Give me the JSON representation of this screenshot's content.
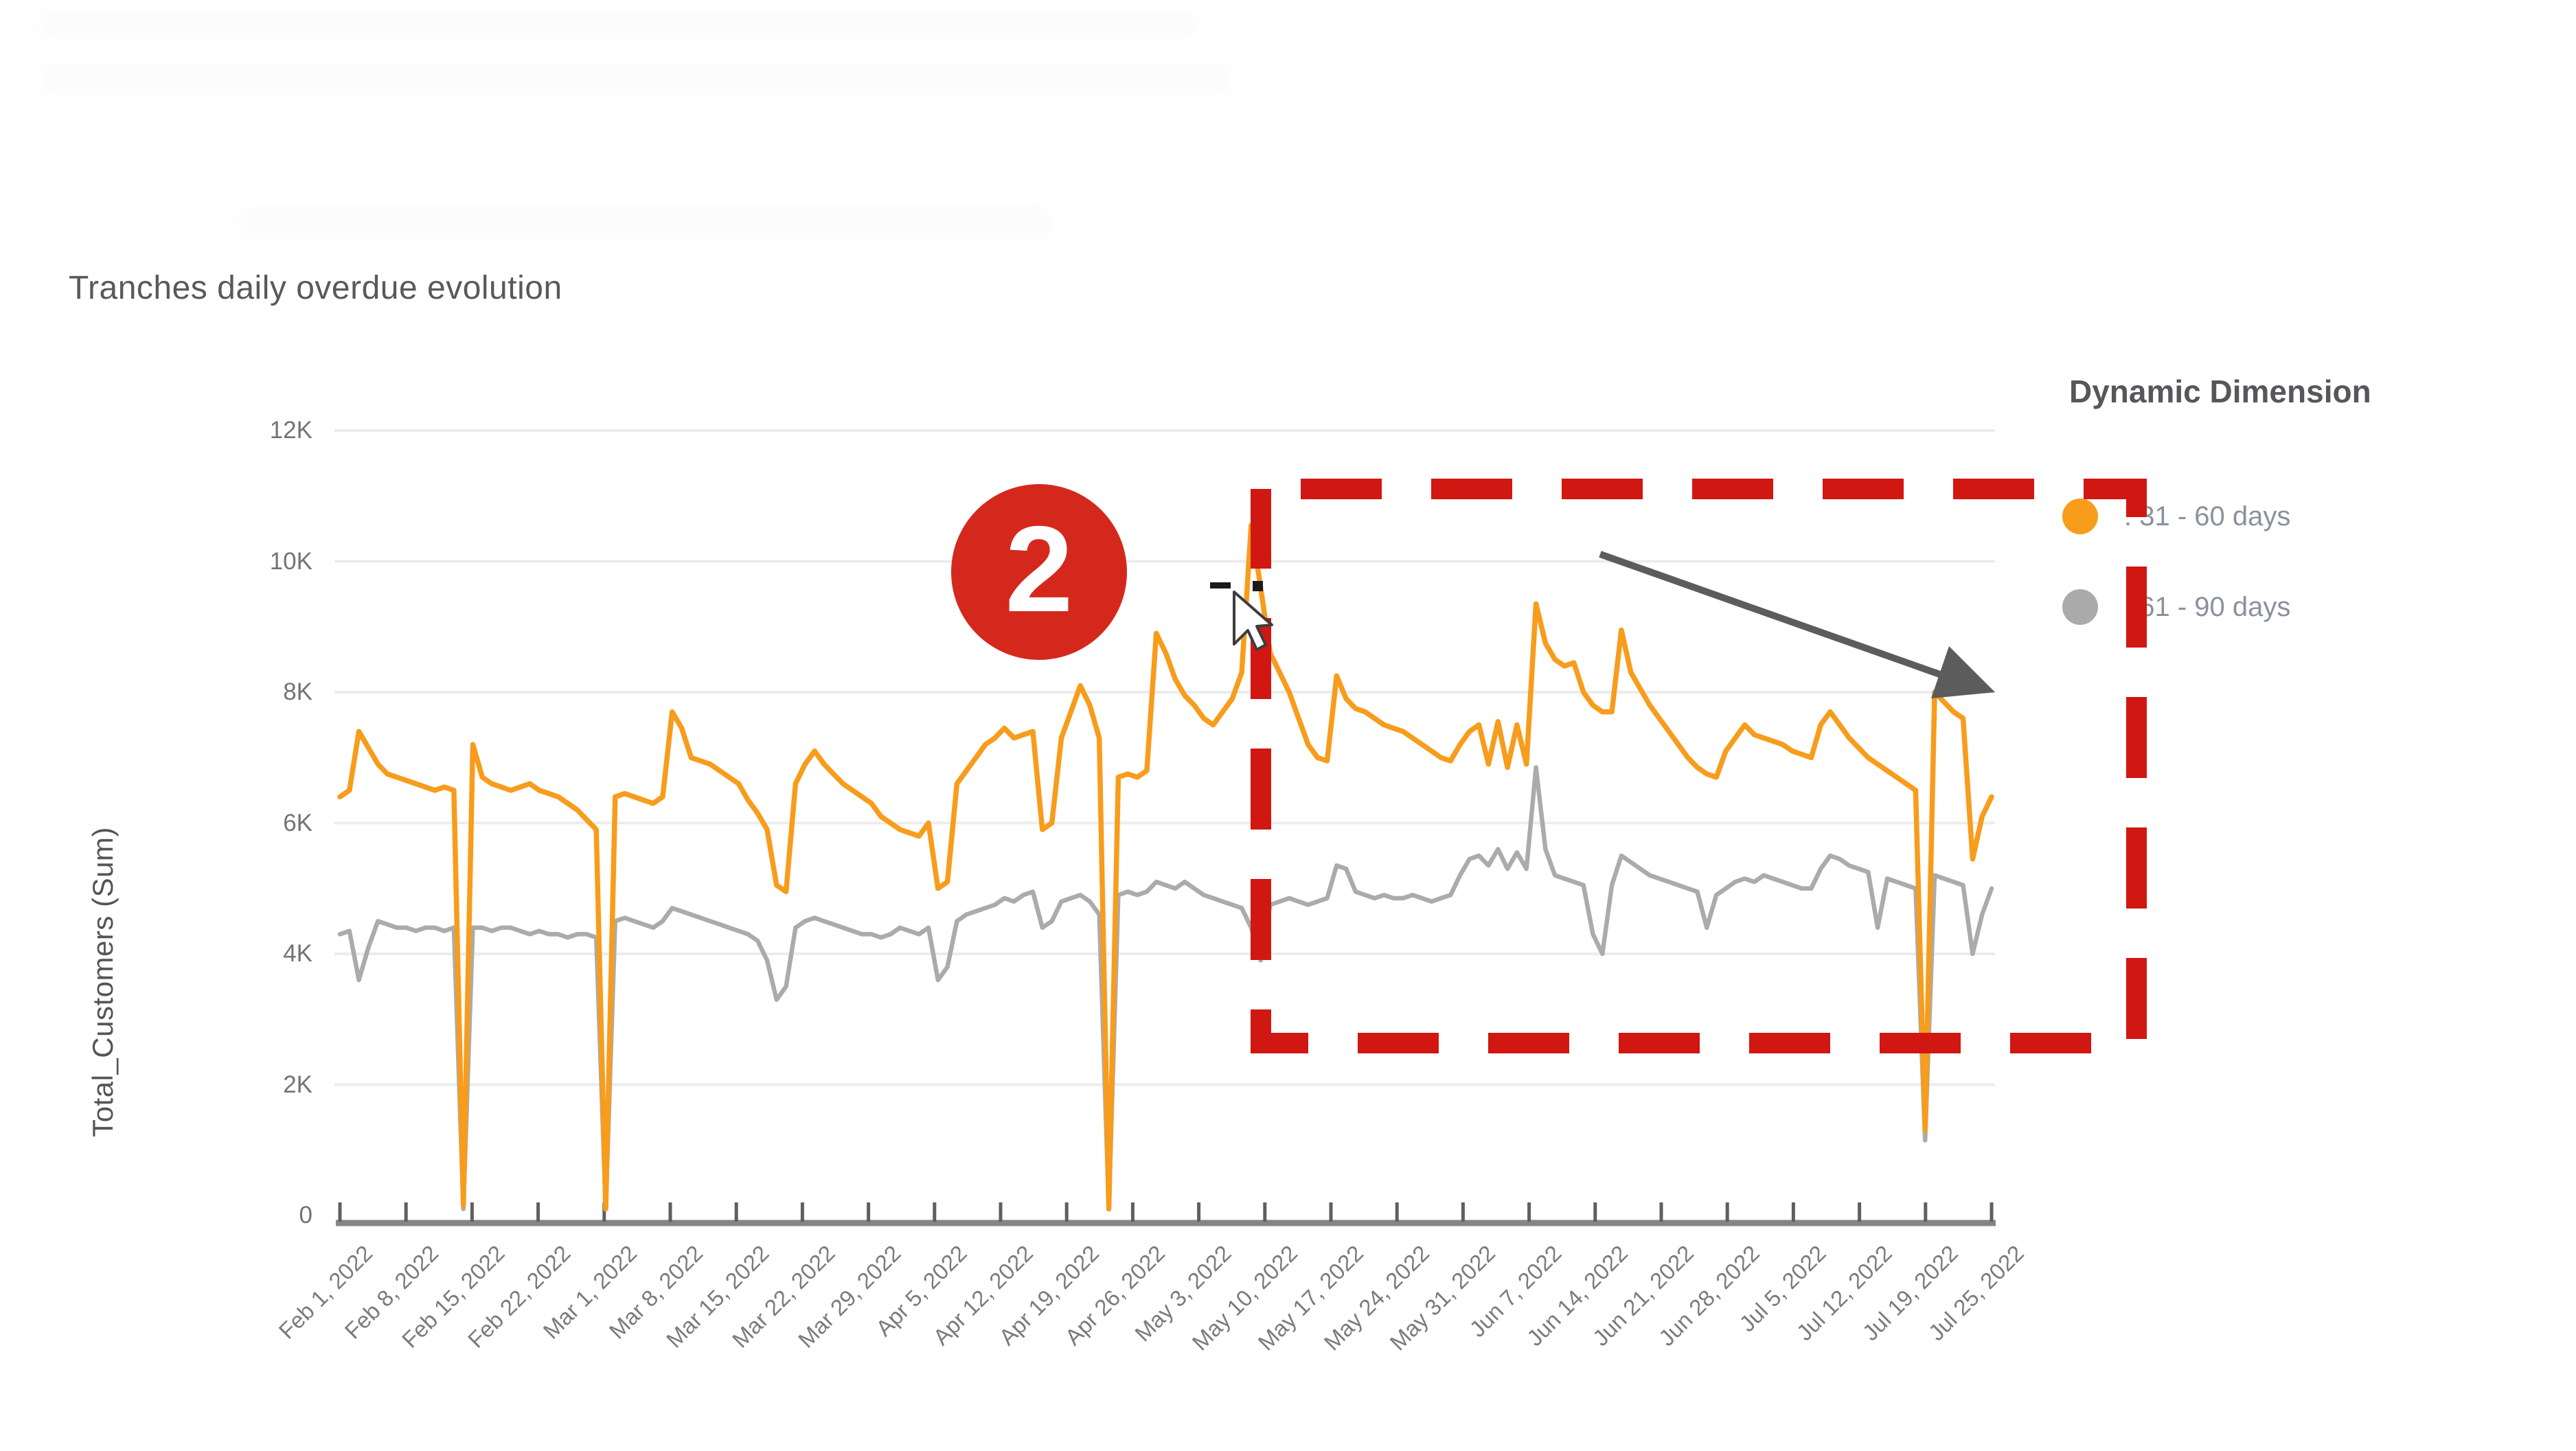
{
  "page": {
    "title": "Tranches daily overdue evolution"
  },
  "legend": {
    "title": "Dynamic Dimension",
    "items": [
      {
        "label": ". 31 - 60 days",
        "color": "#F89C1C"
      },
      {
        "label": ". 61 - 90 days",
        "color": "#ABABAB"
      }
    ]
  },
  "annotations": {
    "step_badge": "2",
    "badge_color": "#D5281D",
    "dash_color": "#D01712",
    "arrow_color": "#5C5C5C"
  },
  "chart_data": {
    "type": "line",
    "title": "Tranches daily overdue evolution",
    "xlabel": "",
    "ylabel": "Total_Customers (Sum)",
    "x_start": "Feb 1, 2022",
    "x_end": "Jul 25, 2022",
    "x_tick_labels": [
      "Feb 1, 2022",
      "Feb 8, 2022",
      "Feb 15, 2022",
      "Feb 22, 2022",
      "Mar 1, 2022",
      "Mar 8, 2022",
      "Mar 15, 2022",
      "Mar 22, 2022",
      "Mar 29, 2022",
      "Apr 5, 2022",
      "Apr 12, 2022",
      "Apr 19, 2022",
      "Apr 26, 2022",
      "May 3, 2022",
      "May 10, 2022",
      "May 17, 2022",
      "May 24, 2022",
      "May 31, 2022",
      "Jun 7, 2022",
      "Jun 14, 2022",
      "Jun 21, 2022",
      "Jun 28, 2022",
      "Jul 5, 2022",
      "Jul 12, 2022",
      "Jul 19, 2022",
      "Jul 25, 2022"
    ],
    "y_tick_labels": [
      "0",
      "2K",
      "4K",
      "6K",
      "8K",
      "10K",
      "12K"
    ],
    "ylim": [
      0,
      12000
    ],
    "grid": "horizontal",
    "legend_position": "right",
    "series": [
      {
        "name": ". 31 - 60 days",
        "color": "#F89C1C",
        "values_k": [
          6.4,
          6.5,
          7.4,
          7.15,
          6.9,
          6.75,
          6.7,
          6.65,
          6.6,
          6.55,
          6.5,
          6.55,
          6.5,
          0.15,
          7.2,
          6.7,
          6.6,
          6.55,
          6.5,
          6.55,
          6.6,
          6.5,
          6.45,
          6.4,
          6.3,
          6.2,
          6.05,
          5.9,
          0.1,
          6.4,
          6.45,
          6.4,
          6.35,
          6.3,
          6.4,
          7.7,
          7.45,
          7.0,
          6.95,
          6.9,
          6.8,
          6.7,
          6.6,
          6.35,
          6.15,
          5.9,
          5.05,
          4.95,
          6.6,
          6.9,
          7.1,
          6.9,
          6.75,
          6.6,
          6.5,
          6.4,
          6.3,
          6.1,
          6.0,
          5.9,
          5.85,
          5.8,
          6.0,
          5.0,
          5.1,
          6.6,
          6.8,
          7.0,
          7.2,
          7.3,
          7.45,
          7.3,
          7.35,
          7.4,
          5.9,
          6.0,
          7.3,
          7.7,
          8.1,
          7.8,
          7.3,
          0.1,
          6.7,
          6.75,
          6.7,
          6.8,
          8.9,
          8.6,
          8.2,
          7.95,
          7.8,
          7.6,
          7.5,
          7.7,
          7.9,
          8.3,
          10.55,
          9.6,
          8.6,
          8.3,
          8.0,
          7.6,
          7.2,
          7.0,
          6.95,
          8.25,
          7.9,
          7.75,
          7.7,
          7.6,
          7.5,
          7.45,
          7.4,
          7.3,
          7.2,
          7.1,
          7.0,
          6.95,
          7.2,
          7.4,
          7.5,
          6.9,
          7.55,
          6.85,
          7.5,
          6.9,
          9.35,
          8.75,
          8.5,
          8.4,
          8.45,
          8.0,
          7.8,
          7.7,
          7.7,
          8.95,
          8.3,
          8.05,
          7.8,
          7.6,
          7.4,
          7.2,
          7.0,
          6.85,
          6.75,
          6.7,
          7.1,
          7.3,
          7.5,
          7.35,
          7.3,
          7.25,
          7.2,
          7.1,
          7.05,
          7.0,
          7.5,
          7.7,
          7.5,
          7.3,
          7.15,
          7.0,
          6.9,
          6.8,
          6.7,
          6.6,
          6.5,
          1.3,
          8.0,
          7.85,
          7.7,
          7.6,
          5.45,
          6.1,
          6.4
        ]
      },
      {
        "name": ". 61 - 90 days",
        "color": "#ABABAB",
        "values_k": [
          4.3,
          4.35,
          3.6,
          4.1,
          4.5,
          4.45,
          4.4,
          4.4,
          4.35,
          4.4,
          4.4,
          4.35,
          4.4,
          0.1,
          4.4,
          4.4,
          4.35,
          4.4,
          4.4,
          4.35,
          4.3,
          4.35,
          4.3,
          4.3,
          4.25,
          4.3,
          4.3,
          4.25,
          0.1,
          4.5,
          4.55,
          4.5,
          4.45,
          4.4,
          4.5,
          4.7,
          4.65,
          4.6,
          4.55,
          4.5,
          4.45,
          4.4,
          4.35,
          4.3,
          4.2,
          3.9,
          3.3,
          3.5,
          4.4,
          4.5,
          4.55,
          4.5,
          4.45,
          4.4,
          4.35,
          4.3,
          4.3,
          4.25,
          4.3,
          4.4,
          4.35,
          4.3,
          4.4,
          3.6,
          3.8,
          4.5,
          4.6,
          4.65,
          4.7,
          4.75,
          4.85,
          4.8,
          4.9,
          4.95,
          4.4,
          4.5,
          4.8,
          4.85,
          4.9,
          4.8,
          4.6,
          0.1,
          4.9,
          4.95,
          4.9,
          4.95,
          5.1,
          5.05,
          5.0,
          5.1,
          5.0,
          4.9,
          4.85,
          4.8,
          4.75,
          4.7,
          4.4,
          3.9,
          4.75,
          4.8,
          4.85,
          4.8,
          4.75,
          4.8,
          4.85,
          5.35,
          5.3,
          4.95,
          4.9,
          4.85,
          4.9,
          4.85,
          4.85,
          4.9,
          4.85,
          4.8,
          4.85,
          4.9,
          5.2,
          5.45,
          5.5,
          5.35,
          5.6,
          5.3,
          5.55,
          5.3,
          6.85,
          5.6,
          5.2,
          5.15,
          5.1,
          5.05,
          4.3,
          4.0,
          5.05,
          5.5,
          5.4,
          5.3,
          5.2,
          5.15,
          5.1,
          5.05,
          5.0,
          4.95,
          4.4,
          4.9,
          5.0,
          5.1,
          5.15,
          5.1,
          5.2,
          5.15,
          5.1,
          5.05,
          5.0,
          5.0,
          5.3,
          5.5,
          5.45,
          5.35,
          5.3,
          5.25,
          4.4,
          5.15,
          5.1,
          5.05,
          5.0,
          1.15,
          5.2,
          5.15,
          5.1,
          5.05,
          4.0,
          4.6,
          5.0
        ]
      }
    ]
  }
}
